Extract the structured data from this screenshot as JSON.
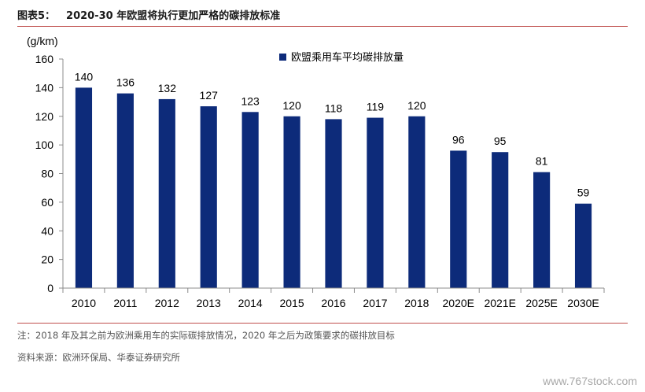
{
  "figure": {
    "label": "图表5：",
    "title": "2020-30 年欧盟将执行更加严格的碳排放标准"
  },
  "chart_data": {
    "type": "bar",
    "unit_label": "(g/km)",
    "categories": [
      "2010",
      "2011",
      "2012",
      "2013",
      "2014",
      "2015",
      "2016",
      "2017",
      "2018",
      "2020E",
      "2021E",
      "2025E",
      "2030E"
    ],
    "series": [
      {
        "name": "欧盟乘用车平均碳排放量",
        "values": [
          140,
          136,
          132,
          127,
          123,
          120,
          118,
          119,
          120,
          96,
          95,
          81,
          59
        ]
      }
    ],
    "ylim": [
      0,
      160
    ],
    "yticks": [
      0,
      20,
      40,
      60,
      80,
      100,
      120,
      140,
      160
    ],
    "legend": "top-right",
    "grid": false,
    "color": "#0d2b7a"
  },
  "notes": {
    "note": "注：2018 年及其之前为欧洲乘用车的实际碳排放情况，2020 年之后为政策要求的碳排放目标",
    "source": "资料来源：欧洲环保局、华泰证券研究所"
  },
  "watermark": "www.767stock.com"
}
